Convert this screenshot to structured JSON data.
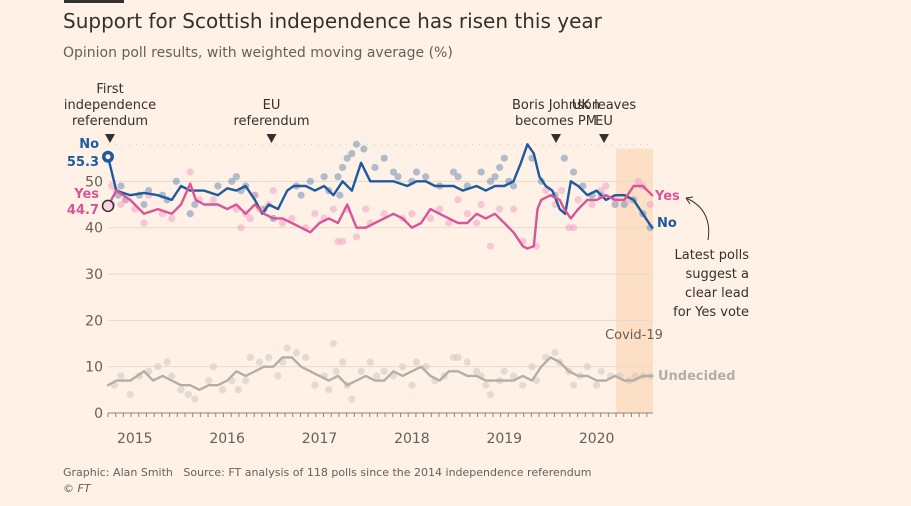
{
  "title": "Support for Scottish independence has risen this year",
  "subtitle": "Opinion poll results, with weighted moving average (%)",
  "footer": {
    "graphic": "Graphic: Alan Smith",
    "source": "Source: FT analysis of 118 polls since the 2014 independence referendum",
    "copyright": "© FT"
  },
  "colors": {
    "no": "#1d5a9e",
    "yes": "#d9559a",
    "undecided": "#b3aeaa",
    "covid_band": "#fbdcc0",
    "grid": "#e6d9ce",
    "background": "#fff1e5"
  },
  "chart_data": {
    "type": "line",
    "title": "Support for Scottish independence has risen this year",
    "subtitle": "Opinion poll results, with weighted moving average (%)",
    "xlabel": "",
    "ylabel": "",
    "x_range": [
      2014.71,
      2020.61
    ],
    "ylim": [
      0,
      60
    ],
    "x_ticks": [
      2015,
      2016,
      2017,
      2018,
      2019,
      2020
    ],
    "x_tick_labels": [
      "2015",
      "2016",
      "2017",
      "2018",
      "2019",
      "2020"
    ],
    "y_ticks": [
      0,
      10,
      20,
      30,
      40,
      50
    ],
    "y_tick_labels": [
      "0",
      "10",
      "20",
      "30",
      "40",
      "50"
    ],
    "grid": true,
    "series": [
      {
        "name": "No",
        "color": "#1d5a9e",
        "x": [
          2014.71,
          2014.8,
          2014.95,
          2015.1,
          2015.25,
          2015.4,
          2015.5,
          2015.6,
          2015.75,
          2015.9,
          2016.0,
          2016.1,
          2016.2,
          2016.3,
          2016.38,
          2016.45,
          2016.55,
          2016.65,
          2016.72,
          2016.85,
          2016.95,
          2017.05,
          2017.15,
          2017.25,
          2017.35,
          2017.45,
          2017.55,
          2017.65,
          2017.8,
          2017.95,
          2018.05,
          2018.15,
          2018.25,
          2018.35,
          2018.45,
          2018.55,
          2018.7,
          2018.8,
          2018.9,
          2019.0,
          2019.1,
          2019.18,
          2019.25,
          2019.32,
          2019.38,
          2019.45,
          2019.52,
          2019.6,
          2019.66,
          2019.72,
          2019.8,
          2019.9,
          2020.0,
          2020.1,
          2020.2,
          2020.3,
          2020.4,
          2020.5,
          2020.6
        ],
        "values": [
          55.3,
          48,
          47,
          47.5,
          47,
          46,
          49,
          48,
          48,
          47,
          48.5,
          48,
          49,
          46,
          43,
          45,
          44,
          48,
          49,
          49,
          48,
          49,
          47,
          50,
          48,
          54,
          50,
          50,
          50,
          49,
          50,
          50,
          49,
          49,
          49,
          48,
          49,
          48,
          49,
          49,
          50,
          54,
          58,
          56,
          51,
          49,
          48,
          44,
          43,
          50,
          49,
          47,
          48,
          46,
          47,
          47,
          46,
          43,
          40
        ]
      },
      {
        "name": "Yes",
        "color": "#d9559a",
        "x": [
          2014.71,
          2014.8,
          2014.95,
          2015.1,
          2015.25,
          2015.4,
          2015.5,
          2015.6,
          2015.66,
          2015.75,
          2015.9,
          2016.0,
          2016.1,
          2016.2,
          2016.3,
          2016.4,
          2016.5,
          2016.6,
          2016.7,
          2016.8,
          2016.9,
          2017.0,
          2017.1,
          2017.2,
          2017.3,
          2017.4,
          2017.5,
          2017.6,
          2017.7,
          2017.8,
          2017.9,
          2018.0,
          2018.1,
          2018.2,
          2018.3,
          2018.4,
          2018.5,
          2018.6,
          2018.7,
          2018.8,
          2018.9,
          2019.0,
          2019.1,
          2019.2,
          2019.25,
          2019.32,
          2019.36,
          2019.4,
          2019.5,
          2019.6,
          2019.65,
          2019.72,
          2019.8,
          2019.9,
          2020.0,
          2020.1,
          2020.2,
          2020.3,
          2020.4,
          2020.5,
          2020.6
        ],
        "values": [
          44.7,
          48,
          46,
          43,
          44,
          43,
          45,
          49.5,
          46,
          45,
          45,
          44,
          45,
          43,
          45,
          43,
          42,
          42,
          41,
          40,
          39,
          41,
          42,
          41,
          45,
          40,
          40,
          41,
          42,
          43,
          42,
          40,
          41,
          44,
          43,
          42,
          41,
          41,
          43,
          42,
          43,
          41,
          39,
          36,
          35.5,
          36,
          44,
          46,
          47,
          46,
          44,
          42,
          44,
          46,
          46,
          47,
          46,
          46,
          49,
          49,
          47
        ]
      },
      {
        "name": "Undecided",
        "color": "#b3aeaa",
        "x": [
          2014.71,
          2014.8,
          2014.95,
          2015.1,
          2015.2,
          2015.3,
          2015.4,
          2015.5,
          2015.6,
          2015.7,
          2015.8,
          2015.9,
          2016.0,
          2016.1,
          2016.2,
          2016.3,
          2016.4,
          2016.5,
          2016.6,
          2016.7,
          2016.8,
          2016.9,
          2017.0,
          2017.1,
          2017.2,
          2017.3,
          2017.4,
          2017.5,
          2017.6,
          2017.7,
          2017.8,
          2017.9,
          2018.0,
          2018.1,
          2018.2,
          2018.3,
          2018.4,
          2018.5,
          2018.6,
          2018.7,
          2018.8,
          2018.9,
          2019.0,
          2019.1,
          2019.2,
          2019.3,
          2019.4,
          2019.5,
          2019.6,
          2019.7,
          2019.8,
          2019.9,
          2020.0,
          2020.1,
          2020.2,
          2020.3,
          2020.4,
          2020.5,
          2020.6
        ],
        "values": [
          6,
          7,
          7,
          9,
          7,
          8,
          7,
          6,
          6,
          5,
          6,
          6,
          7,
          9,
          8,
          9,
          10,
          10,
          12,
          12,
          10,
          9,
          8,
          7,
          8,
          6,
          7,
          8,
          7,
          7,
          9,
          8,
          9,
          10,
          8,
          7,
          9,
          9,
          8,
          8,
          7,
          7,
          7,
          7,
          8,
          7,
          10,
          12,
          11,
          9,
          8,
          8,
          7,
          7,
          8,
          7,
          7,
          8,
          8
        ]
      }
    ],
    "poll_points": {
      "no": [
        [
          2014.75,
          45
        ],
        [
          2014.82,
          47
        ],
        [
          2014.85,
          49
        ],
        [
          2014.9,
          46
        ],
        [
          2015.05,
          47
        ],
        [
          2015.1,
          45
        ],
        [
          2015.15,
          48
        ],
        [
          2015.3,
          47
        ],
        [
          2015.35,
          46
        ],
        [
          2015.45,
          50
        ],
        [
          2015.6,
          43
        ],
        [
          2015.65,
          45
        ],
        [
          2015.9,
          49
        ],
        [
          2016.05,
          50
        ],
        [
          2016.1,
          51
        ],
        [
          2016.15,
          48
        ],
        [
          2016.2,
          49
        ],
        [
          2016.3,
          47
        ],
        [
          2016.4,
          44
        ],
        [
          2016.5,
          42
        ],
        [
          2016.75,
          49
        ],
        [
          2016.8,
          47
        ],
        [
          2016.9,
          50
        ],
        [
          2017.05,
          51
        ],
        [
          2017.1,
          48
        ],
        [
          2017.2,
          51
        ],
        [
          2017.22,
          47
        ],
        [
          2017.25,
          53
        ],
        [
          2017.3,
          55
        ],
        [
          2017.35,
          56
        ],
        [
          2017.4,
          58
        ],
        [
          2017.48,
          57
        ],
        [
          2017.6,
          53
        ],
        [
          2017.7,
          55
        ],
        [
          2017.8,
          52
        ],
        [
          2017.85,
          51
        ],
        [
          2018.0,
          50
        ],
        [
          2018.05,
          52
        ],
        [
          2018.15,
          51
        ],
        [
          2018.3,
          49
        ],
        [
          2018.45,
          52
        ],
        [
          2018.5,
          51
        ],
        [
          2018.6,
          49
        ],
        [
          2018.75,
          52
        ],
        [
          2018.85,
          50
        ],
        [
          2018.9,
          51
        ],
        [
          2018.95,
          53
        ],
        [
          2019.0,
          55
        ],
        [
          2019.05,
          50
        ],
        [
          2019.1,
          49
        ],
        [
          2019.3,
          55
        ],
        [
          2019.4,
          50
        ],
        [
          2019.55,
          47
        ],
        [
          2019.65,
          55
        ],
        [
          2019.75,
          52
        ],
        [
          2019.85,
          49
        ],
        [
          2019.95,
          47
        ],
        [
          2020.05,
          47
        ],
        [
          2020.2,
          45
        ],
        [
          2020.3,
          45
        ],
        [
          2020.4,
          46
        ],
        [
          2020.5,
          43
        ],
        [
          2020.58,
          40
        ]
      ],
      "yes": [
        [
          2014.75,
          49
        ],
        [
          2014.8,
          48
        ],
        [
          2014.85,
          45
        ],
        [
          2014.9,
          46
        ],
        [
          2015.0,
          44
        ],
        [
          2015.1,
          41
        ],
        [
          2015.15,
          47
        ],
        [
          2015.3,
          43
        ],
        [
          2015.4,
          42
        ],
        [
          2015.6,
          52
        ],
        [
          2015.7,
          46
        ],
        [
          2015.85,
          46
        ],
        [
          2016.1,
          44
        ],
        [
          2016.15,
          40
        ],
        [
          2016.2,
          43
        ],
        [
          2016.25,
          42
        ],
        [
          2016.3,
          47
        ],
        [
          2016.35,
          44
        ],
        [
          2016.45,
          45
        ],
        [
          2016.5,
          48
        ],
        [
          2016.6,
          41
        ],
        [
          2016.7,
          42
        ],
        [
          2016.85,
          40
        ],
        [
          2016.95,
          43
        ],
        [
          2017.05,
          42
        ],
        [
          2017.15,
          44
        ],
        [
          2017.2,
          37
        ],
        [
          2017.25,
          37
        ],
        [
          2017.3,
          44
        ],
        [
          2017.4,
          38
        ],
        [
          2017.5,
          44
        ],
        [
          2017.55,
          41
        ],
        [
          2017.7,
          43
        ],
        [
          2017.9,
          42
        ],
        [
          2018.0,
          43
        ],
        [
          2018.2,
          42
        ],
        [
          2018.3,
          44
        ],
        [
          2018.4,
          41
        ],
        [
          2018.5,
          46
        ],
        [
          2018.6,
          43
        ],
        [
          2018.7,
          41
        ],
        [
          2018.75,
          45
        ],
        [
          2018.85,
          36
        ],
        [
          2018.95,
          44
        ],
        [
          2019.1,
          44
        ],
        [
          2019.2,
          37
        ],
        [
          2019.35,
          36
        ],
        [
          2019.45,
          48
        ],
        [
          2019.55,
          45
        ],
        [
          2019.62,
          48
        ],
        [
          2019.7,
          40
        ],
        [
          2019.75,
          40
        ],
        [
          2019.8,
          46
        ],
        [
          2019.95,
          45
        ],
        [
          2020.05,
          48
        ],
        [
          2020.1,
          49
        ],
        [
          2020.2,
          46
        ],
        [
          2020.35,
          46
        ],
        [
          2020.45,
          50
        ],
        [
          2020.5,
          49
        ],
        [
          2020.58,
          45
        ]
      ],
      "undecided": [
        [
          2014.78,
          6
        ],
        [
          2014.85,
          8
        ],
        [
          2014.95,
          4
        ],
        [
          2015.05,
          8
        ],
        [
          2015.15,
          9
        ],
        [
          2015.25,
          10
        ],
        [
          2015.35,
          11
        ],
        [
          2015.4,
          8
        ],
        [
          2015.5,
          5
        ],
        [
          2015.58,
          4
        ],
        [
          2015.65,
          3
        ],
        [
          2015.8,
          7
        ],
        [
          2015.85,
          10
        ],
        [
          2015.95,
          5
        ],
        [
          2016.05,
          7
        ],
        [
          2016.12,
          5
        ],
        [
          2016.2,
          7
        ],
        [
          2016.25,
          12
        ],
        [
          2016.35,
          11
        ],
        [
          2016.45,
          12
        ],
        [
          2016.55,
          8
        ],
        [
          2016.6,
          11
        ],
        [
          2016.65,
          14
        ],
        [
          2016.75,
          13
        ],
        [
          2016.85,
          12
        ],
        [
          2016.95,
          6
        ],
        [
          2017.05,
          8
        ],
        [
          2017.1,
          5
        ],
        [
          2017.15,
          15
        ],
        [
          2017.18,
          9
        ],
        [
          2017.25,
          11
        ],
        [
          2017.3,
          6
        ],
        [
          2017.35,
          3
        ],
        [
          2017.45,
          9
        ],
        [
          2017.55,
          11
        ],
        [
          2017.62,
          8
        ],
        [
          2017.7,
          9
        ],
        [
          2017.8,
          8
        ],
        [
          2017.9,
          10
        ],
        [
          2018.0,
          6
        ],
        [
          2018.05,
          11
        ],
        [
          2018.15,
          10
        ],
        [
          2018.25,
          7
        ],
        [
          2018.35,
          8
        ],
        [
          2018.45,
          12
        ],
        [
          2018.5,
          12
        ],
        [
          2018.6,
          11
        ],
        [
          2018.7,
          9
        ],
        [
          2018.75,
          8
        ],
        [
          2018.8,
          6
        ],
        [
          2018.85,
          4
        ],
        [
          2018.95,
          7
        ],
        [
          2019.0,
          9
        ],
        [
          2019.1,
          8
        ],
        [
          2019.2,
          6
        ],
        [
          2019.3,
          10
        ],
        [
          2019.35,
          7
        ],
        [
          2019.45,
          12
        ],
        [
          2019.55,
          13
        ],
        [
          2019.6,
          11
        ],
        [
          2019.7,
          9
        ],
        [
          2019.75,
          6
        ],
        [
          2019.82,
          8
        ],
        [
          2019.9,
          10
        ],
        [
          2020.0,
          6
        ],
        [
          2020.05,
          9
        ],
        [
          2020.15,
          8
        ],
        [
          2020.25,
          8
        ],
        [
          2020.35,
          7
        ],
        [
          2020.42,
          8
        ],
        [
          2020.5,
          8
        ],
        [
          2020.58,
          8
        ]
      ]
    },
    "events": [
      {
        "label_lines": [
          "First",
          "independence",
          "referendum"
        ],
        "x": 2014.71
      },
      {
        "label_lines": [
          "EU",
          "referendum"
        ],
        "x": 2016.48
      },
      {
        "label_lines": [
          "Boris Johnson",
          "becomes PM"
        ],
        "x": 2019.56
      },
      {
        "label_lines": [
          "UK leaves",
          "EU"
        ],
        "x": 2020.08
      }
    ],
    "start_labels": [
      {
        "series": "No",
        "name": "No",
        "value_label": "55.3"
      },
      {
        "series": "Yes",
        "name": "Yes",
        "value_label": "44.7"
      }
    ],
    "end_labels": [
      {
        "series": "Yes",
        "text": "Yes"
      },
      {
        "series": "No",
        "text": "No"
      },
      {
        "series": "Undecided",
        "text": "Undecided"
      }
    ],
    "covid_band": {
      "label": "Covid-19",
      "x_start": 2020.21,
      "x_end": 2020.61
    },
    "annotation": {
      "lines": [
        "Latest polls",
        "suggest a",
        "clear lead",
        "for Yes vote"
      ]
    }
  }
}
